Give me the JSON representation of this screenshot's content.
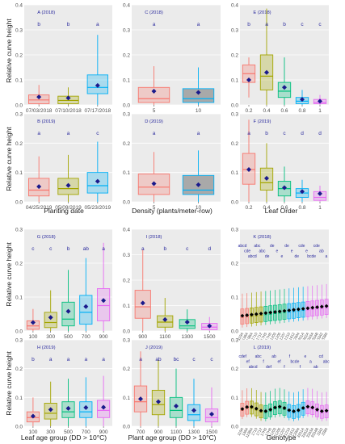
{
  "figure": {
    "ylabel": "Relative curve height",
    "xlabels": {
      "planting_date": "Planting date",
      "density": "Density (plants/meter-row)",
      "leaf_order": "Leaf Order",
      "leaf_age_group": "Leaf age group (DD > 10°C)",
      "plant_age_group": "Plant age group (DD > 10°C)",
      "genotype": "Genotype"
    }
  },
  "colors": {
    "panel_bg": "#ebebeb",
    "grid": "#ffffff",
    "mean_marker": "#1a1a8c",
    "letters": "#2b2b9e",
    "c1": "#f8766d",
    "c2": "#a3a500",
    "c3": "#00bf7d",
    "c4": "#00b0f6",
    "c5": "#e76bf3",
    "grey": "#7f7f7f"
  },
  "chart_data": [
    {
      "id": "A",
      "type": "box",
      "title": "A (2018)",
      "categories": [
        "07/03/2018",
        "07/10/2018",
        "07/17/2018"
      ],
      "ylim": [
        0,
        0.4
      ],
      "yticks": [
        0.0,
        0.1,
        0.2,
        0.3,
        0.4
      ],
      "letters": [
        "b",
        "b",
        "a"
      ],
      "box": [
        {
          "min": 0.0,
          "q1": 0.005,
          "med": 0.02,
          "q3": 0.04,
          "max": 0.08,
          "mean": 0.032
        },
        {
          "min": 0.0,
          "q1": 0.005,
          "med": 0.018,
          "q3": 0.035,
          "max": 0.07,
          "mean": 0.028
        },
        {
          "min": 0.0,
          "q1": 0.045,
          "med": 0.07,
          "q3": 0.12,
          "max": 0.28,
          "mean": 0.078
        }
      ]
    },
    {
      "id": "C",
      "type": "box",
      "title": "C (2018)",
      "categories": [
        "5",
        "10"
      ],
      "ylim": [
        0,
        0.4
      ],
      "yticks": [
        0.0,
        0.1,
        0.2,
        0.3,
        0.4
      ],
      "letters": [
        "a",
        "a"
      ],
      "box": [
        {
          "min": 0.0,
          "q1": 0.01,
          "med": 0.025,
          "q3": 0.07,
          "max": 0.155,
          "mean": 0.055
        },
        {
          "min": 0.0,
          "q1": 0.01,
          "med": 0.025,
          "q3": 0.065,
          "max": 0.15,
          "mean": 0.05
        }
      ]
    },
    {
      "id": "E",
      "type": "box",
      "title": "E (2018)",
      "categories": [
        "0.2",
        "0.4",
        "0.6",
        "0.8",
        "1"
      ],
      "ylim": [
        0,
        0.4
      ],
      "yticks": [
        0.0,
        0.1,
        0.2,
        0.3,
        0.4
      ],
      "letters": [
        "b",
        "a",
        "b",
        "c",
        "c"
      ],
      "box": [
        {
          "min": 0.03,
          "q1": 0.09,
          "med": 0.125,
          "q3": 0.16,
          "max": 0.19,
          "mean": 0.1
        },
        {
          "min": 0.0,
          "q1": 0.06,
          "med": 0.115,
          "q3": 0.2,
          "max": 0.385,
          "mean": 0.13
        },
        {
          "min": 0.0,
          "q1": 0.03,
          "med": 0.055,
          "q3": 0.09,
          "max": 0.19,
          "mean": 0.07
        },
        {
          "min": 0.0,
          "q1": 0.005,
          "med": 0.015,
          "q3": 0.03,
          "max": 0.06,
          "mean": 0.022
        },
        {
          "min": 0.0,
          "q1": 0.005,
          "med": 0.01,
          "q3": 0.022,
          "max": 0.04,
          "mean": 0.015
        }
      ]
    },
    {
      "id": "B",
      "type": "box",
      "title": "B (2019)",
      "categories": [
        "04/25/2019",
        "05/09/2019",
        "05/23/2019"
      ],
      "ylim": [
        0,
        0.3
      ],
      "yticks": [
        0.0,
        0.1,
        0.2,
        0.3
      ],
      "letters": [
        "a",
        "a",
        "c"
      ],
      "box": [
        {
          "min": 0.0,
          "q1": 0.02,
          "med": 0.04,
          "q3": 0.08,
          "max": 0.155,
          "mean": 0.052
        },
        {
          "min": 0.0,
          "q1": 0.025,
          "med": 0.045,
          "q3": 0.08,
          "max": 0.16,
          "mean": 0.056
        },
        {
          "min": 0.0,
          "q1": 0.03,
          "med": 0.055,
          "q3": 0.1,
          "max": 0.205,
          "mean": 0.07
        }
      ]
    },
    {
      "id": "D",
      "type": "box",
      "title": "D (2019)",
      "categories": [
        "5",
        "10"
      ],
      "ylim": [
        0,
        0.3
      ],
      "yticks": [
        0.0,
        0.1,
        0.2,
        0.3
      ],
      "letters": [
        "a",
        "a"
      ],
      "box": [
        {
          "min": 0.0,
          "q1": 0.025,
          "med": 0.05,
          "q3": 0.095,
          "max": 0.17,
          "mean": 0.062
        },
        {
          "min": 0.0,
          "q1": 0.025,
          "med": 0.04,
          "q3": 0.09,
          "max": 0.175,
          "mean": 0.058
        }
      ]
    },
    {
      "id": "F",
      "type": "box",
      "title": "F (2019)",
      "categories": [
        "0.2",
        "0.4",
        "0.6",
        "0.8",
        "1"
      ],
      "ylim": [
        0,
        0.3
      ],
      "yticks": [
        0.0,
        0.1,
        0.2,
        0.3
      ],
      "letters": [
        "a",
        "b",
        "c",
        "d",
        "d"
      ],
      "box": [
        {
          "min": 0.0,
          "q1": 0.06,
          "med": 0.11,
          "q3": 0.165,
          "max": 0.28,
          "mean": 0.11
        },
        {
          "min": 0.0,
          "q1": 0.04,
          "med": 0.065,
          "q3": 0.115,
          "max": 0.2,
          "mean": 0.08
        },
        {
          "min": 0.0,
          "q1": 0.02,
          "med": 0.045,
          "q3": 0.07,
          "max": 0.12,
          "mean": 0.048
        },
        {
          "min": 0.0,
          "q1": 0.015,
          "med": 0.03,
          "q3": 0.045,
          "max": 0.075,
          "mean": 0.035
        },
        {
          "min": 0.0,
          "q1": 0.005,
          "med": 0.015,
          "q3": 0.035,
          "max": 0.055,
          "mean": 0.028
        }
      ]
    },
    {
      "id": "G",
      "type": "box",
      "title": "G (2018)",
      "categories": [
        "100",
        "300",
        "500",
        "700",
        "900"
      ],
      "ylim": [
        0,
        0.3
      ],
      "yticks": [
        0.0,
        0.1,
        0.2,
        0.3
      ],
      "letters": [
        "c",
        "c",
        "b",
        "ab",
        "a"
      ],
      "box": [
        {
          "min": 0.0,
          "q1": 0.005,
          "med": 0.015,
          "q3": 0.03,
          "max": 0.065,
          "mean": 0.025
        },
        {
          "min": 0.0,
          "q1": 0.01,
          "med": 0.025,
          "q3": 0.055,
          "max": 0.12,
          "mean": 0.04
        },
        {
          "min": 0.0,
          "q1": 0.015,
          "med": 0.035,
          "q3": 0.085,
          "max": 0.18,
          "mean": 0.058
        },
        {
          "min": 0.0,
          "q1": 0.02,
          "med": 0.055,
          "q3": 0.105,
          "max": 0.215,
          "mean": 0.072
        },
        {
          "min": 0.0,
          "q1": 0.03,
          "med": 0.075,
          "q3": 0.125,
          "max": 0.26,
          "mean": 0.09
        }
      ]
    },
    {
      "id": "I",
      "type": "box",
      "title": "I (2018)",
      "categories": [
        "900",
        "1100",
        "1300",
        "1500"
      ],
      "ylim": [
        0,
        0.4
      ],
      "yticks": [
        0.0,
        0.1,
        0.2,
        0.3,
        0.4
      ],
      "letters": [
        "a",
        "b",
        "c",
        "d"
      ],
      "box": [
        {
          "min": 0.0,
          "q1": 0.05,
          "med": 0.095,
          "q3": 0.16,
          "max": 0.32,
          "mean": 0.11
        },
        {
          "min": 0.0,
          "q1": 0.015,
          "med": 0.035,
          "q3": 0.06,
          "max": 0.13,
          "mean": 0.045
        },
        {
          "min": 0.0,
          "q1": 0.01,
          "med": 0.02,
          "q3": 0.045,
          "max": 0.085,
          "mean": 0.035
        },
        {
          "min": 0.0,
          "q1": 0.005,
          "med": 0.015,
          "q3": 0.03,
          "max": 0.055,
          "mean": 0.02
        }
      ]
    },
    {
      "id": "K",
      "type": "box",
      "title": "K (2018)",
      "letters": [
        "abcd",
        "cde",
        "abcd",
        "abc",
        "abc",
        "de",
        "de",
        "e",
        "e",
        "de",
        "e",
        "de",
        "cde",
        "e",
        "bcde",
        "cde",
        "ab",
        "a"
      ],
      "ylim": [
        0,
        0.3
      ],
      "yticks": [
        0.0,
        0.1,
        0.2,
        0.3
      ],
      "x_tick_labels": [
        "119A",
        "138A",
        "119BA",
        "1710",
        "1712",
        "17H5",
        "17H6",
        "21203",
        "21205",
        "21207",
        "21210",
        "21612",
        "22904",
        "3331A",
        "3332A",
        "3333A",
        "3334B",
        "3342",
        "3386"
      ]
    },
    {
      "id": "H",
      "type": "box",
      "title": "H (2019)",
      "categories": [
        "100",
        "300",
        "500",
        "700",
        "900"
      ],
      "ylim": [
        0,
        0.3
      ],
      "yticks": [
        0.0,
        0.1,
        0.2,
        0.3
      ],
      "letters": [
        "b",
        "a",
        "a",
        "a",
        "a"
      ],
      "box": [
        {
          "min": 0.0,
          "q1": 0.015,
          "med": 0.03,
          "q3": 0.05,
          "max": 0.1,
          "mean": 0.035
        },
        {
          "min": 0.0,
          "q1": 0.025,
          "med": 0.045,
          "q3": 0.08,
          "max": 0.155,
          "mean": 0.058
        },
        {
          "min": 0.0,
          "q1": 0.03,
          "med": 0.05,
          "q3": 0.085,
          "max": 0.165,
          "mean": 0.062
        },
        {
          "min": 0.0,
          "q1": 0.03,
          "med": 0.05,
          "q3": 0.085,
          "max": 0.17,
          "mean": 0.065
        },
        {
          "min": 0.0,
          "q1": 0.03,
          "med": 0.055,
          "q3": 0.09,
          "max": 0.175,
          "mean": 0.066
        }
      ]
    },
    {
      "id": "J",
      "type": "box",
      "title": "J (2019)",
      "categories": [
        "700",
        "900",
        "1100",
        "1300",
        "1500"
      ],
      "ylim": [
        0,
        0.3
      ],
      "yticks": [
        0.0,
        0.1,
        0.2,
        0.3
      ],
      "letters": [
        "a",
        "ab",
        "bc",
        "c",
        "c"
      ],
      "box": [
        {
          "min": 0.0,
          "q1": 0.05,
          "med": 0.085,
          "q3": 0.14,
          "max": 0.26,
          "mean": 0.095
        },
        {
          "min": 0.0,
          "q1": 0.04,
          "med": 0.075,
          "q3": 0.125,
          "max": 0.23,
          "mean": 0.085
        },
        {
          "min": 0.0,
          "q1": 0.03,
          "med": 0.055,
          "q3": 0.1,
          "max": 0.2,
          "mean": 0.07
        },
        {
          "min": 0.0,
          "q1": 0.02,
          "med": 0.04,
          "q3": 0.075,
          "max": 0.165,
          "mean": 0.055
        },
        {
          "min": 0.0,
          "q1": 0.015,
          "med": 0.03,
          "q3": 0.06,
          "max": 0.135,
          "mean": 0.042
        }
      ]
    },
    {
      "id": "L",
      "type": "box",
      "title": "L (2019)",
      "letters": [
        "cdef",
        "ef",
        "abcd",
        "abc",
        "f",
        "def",
        "ab",
        "ef",
        "f",
        "f",
        "bcde",
        "f",
        "e",
        "a",
        "ab",
        "cd",
        "abc"
      ],
      "ylim": [
        0,
        0.3
      ],
      "yticks": [
        0.0,
        0.1,
        0.2,
        0.3
      ],
      "x_tick_labels": [
        "119A",
        "138A",
        "119BA",
        "1710",
        "1712",
        "17H5",
        "17H6",
        "21203",
        "21205",
        "21207",
        "21210",
        "21612",
        "22904",
        "3331A",
        "3332A",
        "3333A",
        "3334B",
        "3342",
        "3386"
      ]
    }
  ]
}
